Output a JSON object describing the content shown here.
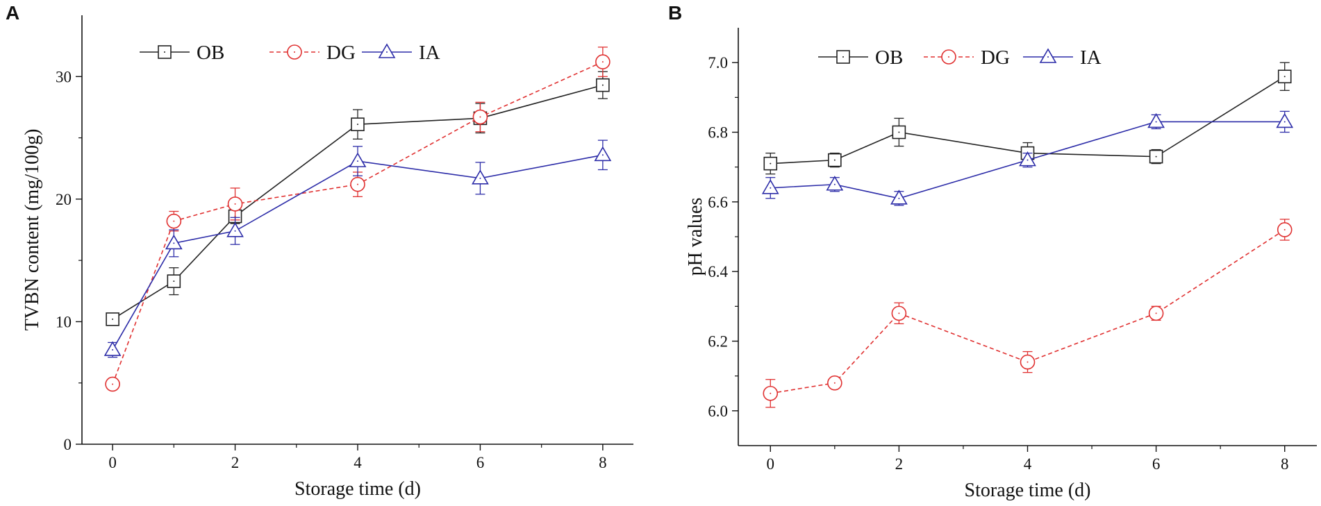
{
  "chart_data": [
    {
      "panel": "A",
      "type": "line",
      "xlabel": "Storage time (d)",
      "ylabel": "TVBN content (mg/100g)",
      "xlim": [
        -0.5,
        8.5
      ],
      "ylim": [
        0,
        35
      ],
      "x_ticks": [
        0,
        2,
        4,
        6,
        8
      ],
      "y_ticks": [
        0,
        10,
        20,
        30
      ],
      "legend_position": "top-center",
      "series": [
        {
          "name": "OB",
          "color": "#222222",
          "marker": "square",
          "line": "solid",
          "x": [
            0,
            1,
            2,
            4,
            6,
            8
          ],
          "values": [
            10.2,
            13.3,
            18.6,
            26.1,
            26.6,
            29.3
          ],
          "error": [
            0.3,
            1.1,
            0.6,
            1.2,
            1.2,
            1.1
          ]
        },
        {
          "name": "DG",
          "color": "#e03030",
          "marker": "circle",
          "line": "dashed",
          "x": [
            0,
            1,
            2,
            4,
            6,
            8
          ],
          "values": [
            4.9,
            18.2,
            19.6,
            21.2,
            26.7,
            31.2
          ],
          "error": [
            0.4,
            0.8,
            1.3,
            1.0,
            1.2,
            1.2
          ]
        },
        {
          "name": "IA",
          "color": "#2c2ca8",
          "marker": "triangle",
          "line": "solid",
          "x": [
            0,
            1,
            2,
            4,
            6,
            8
          ],
          "values": [
            7.7,
            16.4,
            17.4,
            23.1,
            21.7,
            23.6
          ],
          "error": [
            0.6,
            1.1,
            1.1,
            1.2,
            1.3,
            1.2
          ]
        }
      ]
    },
    {
      "panel": "B",
      "type": "line",
      "xlabel": "Storage time (d)",
      "ylabel": "pH values",
      "xlim": [
        -0.5,
        8.5
      ],
      "ylim": [
        5.9,
        7.1
      ],
      "x_ticks": [
        0,
        2,
        4,
        6,
        8
      ],
      "y_ticks": [
        6.0,
        6.2,
        6.4,
        6.6,
        6.8,
        7.0
      ],
      "y_tick_labels": [
        "6.0",
        "6.2",
        "6.4",
        "6.6",
        "6.8",
        "7.0"
      ],
      "legend_position": "top-center",
      "series": [
        {
          "name": "OB",
          "color": "#222222",
          "marker": "square",
          "line": "solid",
          "x": [
            0,
            1,
            2,
            4,
            6,
            8
          ],
          "values": [
            6.71,
            6.72,
            6.8,
            6.74,
            6.73,
            6.96
          ],
          "error": [
            0.03,
            0.02,
            0.04,
            0.03,
            0.02,
            0.04
          ]
        },
        {
          "name": "DG",
          "color": "#e03030",
          "marker": "circle",
          "line": "dashed",
          "x": [
            0,
            1,
            2,
            4,
            6,
            8
          ],
          "values": [
            6.05,
            6.08,
            6.28,
            6.14,
            6.28,
            6.52
          ],
          "error": [
            0.04,
            0.01,
            0.03,
            0.03,
            0.02,
            0.03
          ]
        },
        {
          "name": "IA",
          "color": "#2c2ca8",
          "marker": "triangle",
          "line": "solid",
          "x": [
            0,
            1,
            2,
            4,
            6,
            8
          ],
          "values": [
            6.64,
            6.65,
            6.61,
            6.72,
            6.83,
            6.83
          ],
          "error": [
            0.03,
            0.02,
            0.02,
            0.02,
            0.02,
            0.03
          ]
        }
      ]
    }
  ]
}
